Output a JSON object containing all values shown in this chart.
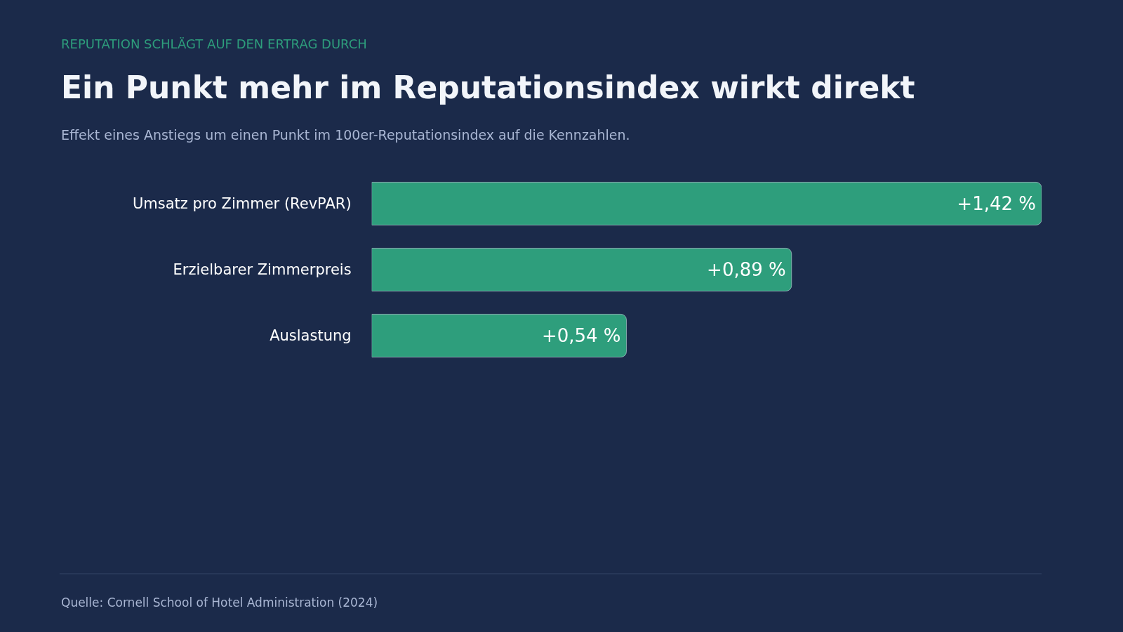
{
  "chart_data": {
    "type": "bar",
    "orientation": "horizontal",
    "subtitle": "REPUTATION SCHLÄGT AUF DEN ERTRAG DURCH",
    "title": "Ein Punkt mehr im Reputationsindex wirkt direkt",
    "annotations": [
      "Effekt eines Anstiegs um einen Punkt im 100er-Reputationsindex auf die Kennzahlen.",
      "Quelle: Cornell School of Hotel Administration (2024)"
    ],
    "categories": [
      "Umsatz pro Zimmer (RevPAR)",
      "Erzielbarer Zimmerpreis",
      "Auslastung"
    ],
    "values": [
      1.42,
      0.89,
      0.54
    ],
    "value_labels": [
      "+1,42 %",
      "+0,89 %",
      "+0,54 %"
    ],
    "color": "#2e9e7c",
    "xlim": [
      0,
      1.42
    ],
    "tick_labels": "y",
    "grid": false,
    "legend": false
  }
}
